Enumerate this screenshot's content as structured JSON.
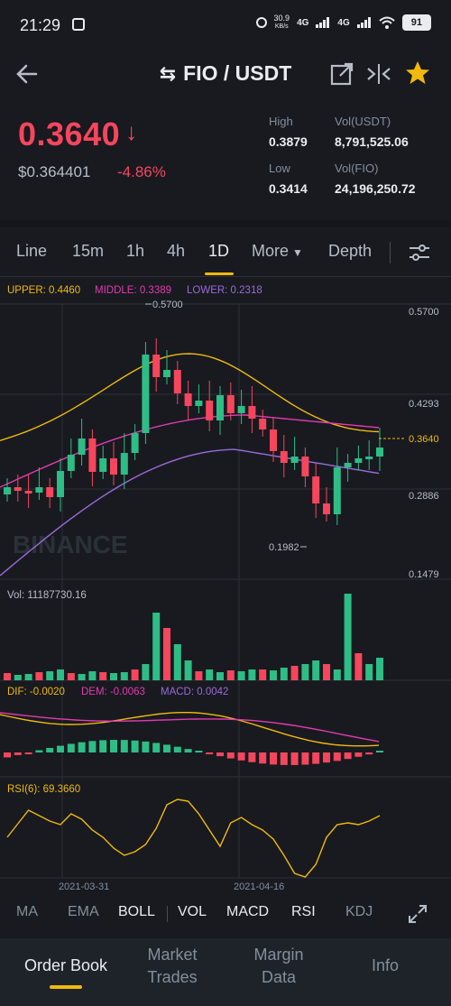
{
  "status_bar": {
    "time": "21:29",
    "net_speed_value": "30.9",
    "net_speed_unit": "KB/s",
    "signal1": "4G",
    "signal2": "4G",
    "battery": "91"
  },
  "header": {
    "title": "FIO / USDT"
  },
  "price": {
    "last": "0.3640",
    "fiat": "$0.364401",
    "change": "-4.86%"
  },
  "stats": {
    "high_label": "High",
    "high": "0.3879",
    "low_label": "Low",
    "low": "0.3414",
    "vol_usdt_label": "Vol(USDT)",
    "vol_usdt": "8,791,525.06",
    "vol_fio_label": "Vol(FIO)",
    "vol_fio": "24,196,250.72"
  },
  "tabs": {
    "line": "Line",
    "m15": "15m",
    "h1": "1h",
    "h4": "4h",
    "d1": "1D",
    "more": "More",
    "depth": "Depth"
  },
  "chart": {
    "boll_upper": "UPPER: 0.4460",
    "boll_middle": "MIDDLE: 0.3389",
    "boll_lower": "LOWER: 0.2318",
    "y_labels": [
      "0.5700",
      "0.4293",
      "0.2886",
      "0.1479"
    ],
    "current_price": "0.3640",
    "max_label": "0.5700",
    "min_label": "0.1982",
    "watermark": "BINANCE",
    "vol_label": "Vol: 11187730.16",
    "dif_label": "DIF: -0.0020",
    "dem_label": "DEM: -0.0063",
    "macd_label": "MACD: 0.0042",
    "rsi_label": "RSI(6): 69.3660",
    "dates": [
      "2021-03-31",
      "2021-04-16"
    ],
    "colors": {
      "up": "#2ebd85",
      "down": "#f6465d",
      "upper": "#f0b90b",
      "middle": "#e33ab0",
      "lower": "#9b6ad8",
      "accent": "#f0b90b"
    }
  },
  "indicators": {
    "ma": "MA",
    "ema": "EMA",
    "boll": "BOLL",
    "vol": "VOL",
    "macd": "MACD",
    "rsi": "RSI",
    "kdj": "KDJ"
  },
  "bottom_nav": {
    "order_book": "Order Book",
    "market_trades_1": "Market",
    "market_trades_2": "Trades",
    "margin_1": "Margin",
    "margin_2": "Data",
    "info": "Info"
  }
}
